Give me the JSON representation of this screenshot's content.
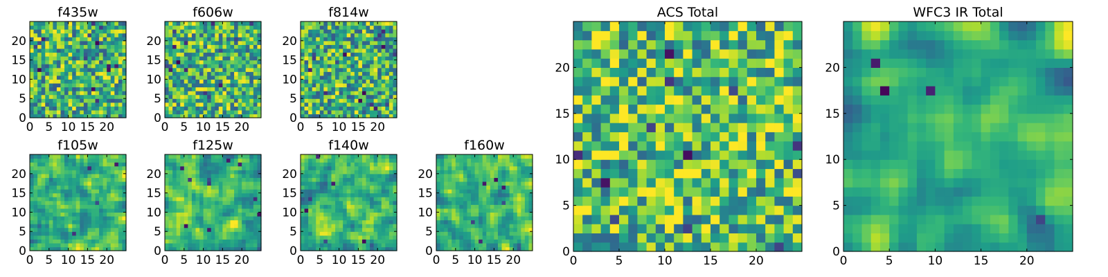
{
  "chart_data": [
    {
      "type": "heatmap",
      "title": "f435w",
      "xticks": [
        "0",
        "5",
        "10",
        "15",
        "20"
      ],
      "yticks": [
        "0",
        "5",
        "10",
        "15",
        "20"
      ],
      "xlim": [
        0,
        25
      ],
      "ylim": [
        0,
        25
      ],
      "grid_size": [
        25,
        25
      ],
      "colormap": "viridis",
      "seed": 11,
      "smooth": 0,
      "bias": 0.0,
      "gamma": 1.0,
      "dark_spots": 14
    },
    {
      "type": "heatmap",
      "title": "f606w",
      "xticks": [
        "0",
        "5",
        "10",
        "15",
        "20"
      ],
      "yticks": [
        "0",
        "5",
        "10",
        "15",
        "20"
      ],
      "xlim": [
        0,
        25
      ],
      "ylim": [
        0,
        25
      ],
      "grid_size": [
        25,
        25
      ],
      "colormap": "viridis",
      "seed": 23,
      "smooth": 0,
      "bias": 0.02,
      "gamma": 1.0,
      "dark_spots": 14
    },
    {
      "type": "heatmap",
      "title": "f814w",
      "xticks": [
        "0",
        "5",
        "10",
        "15",
        "20"
      ],
      "yticks": [
        "0",
        "5",
        "10",
        "15",
        "20"
      ],
      "xlim": [
        0,
        25
      ],
      "ylim": [
        0,
        25
      ],
      "grid_size": [
        25,
        25
      ],
      "colormap": "viridis",
      "seed": 37,
      "smooth": 0,
      "bias": 0.0,
      "gamma": 1.0,
      "dark_spots": 16
    },
    {
      "type": "heatmap",
      "title": "f105w",
      "xticks": [
        "0",
        "5",
        "10",
        "15",
        "20"
      ],
      "yticks": [
        "0",
        "5",
        "10",
        "15",
        "20"
      ],
      "xlim": [
        0,
        25
      ],
      "ylim": [
        0,
        25
      ],
      "grid_size": [
        25,
        25
      ],
      "colormap": "viridis",
      "seed": 41,
      "smooth": 1,
      "bias": 0.05,
      "gamma": 1.0,
      "dark_spots": 4
    },
    {
      "type": "heatmap",
      "title": "f125w",
      "xticks": [
        "0",
        "5",
        "10",
        "15",
        "20"
      ],
      "yticks": [
        "0",
        "5",
        "10",
        "15",
        "20"
      ],
      "xlim": [
        0,
        25
      ],
      "ylim": [
        0,
        25
      ],
      "grid_size": [
        25,
        25
      ],
      "colormap": "viridis",
      "seed": 53,
      "smooth": 1,
      "bias": 0.0,
      "gamma": 1.0,
      "dark_spots": 10
    },
    {
      "type": "heatmap",
      "title": "f140w",
      "xticks": [
        "0",
        "5",
        "10",
        "15",
        "20"
      ],
      "yticks": [
        "0",
        "5",
        "10",
        "15",
        "20"
      ],
      "xlim": [
        0,
        25
      ],
      "ylim": [
        0,
        25
      ],
      "grid_size": [
        25,
        25
      ],
      "colormap": "viridis",
      "seed": 67,
      "smooth": 1,
      "bias": 0.0,
      "gamma": 1.0,
      "dark_spots": 6
    },
    {
      "type": "heatmap",
      "title": "f160w",
      "xticks": [
        "0",
        "5",
        "10",
        "15",
        "20"
      ],
      "yticks": [
        "0",
        "5",
        "10",
        "15",
        "20"
      ],
      "xlim": [
        0,
        25
      ],
      "ylim": [
        0,
        25
      ],
      "grid_size": [
        25,
        25
      ],
      "colormap": "viridis",
      "seed": 79,
      "smooth": 1,
      "bias": 0.0,
      "gamma": 1.0,
      "dark_spots": 6
    },
    {
      "type": "heatmap",
      "title": "ACS Total",
      "xticks": [
        "0",
        "5",
        "10",
        "15",
        "20"
      ],
      "yticks": [
        "0",
        "5",
        "10",
        "15",
        "20"
      ],
      "xlim": [
        0,
        25
      ],
      "ylim": [
        0,
        25
      ],
      "grid_size": [
        25,
        25
      ],
      "colormap": "viridis",
      "seed": 97,
      "smooth": 0,
      "bias": 0.05,
      "gamma": 1.0,
      "dark_spots": 12
    },
    {
      "type": "heatmap",
      "title": "WFC3 IR Total",
      "xticks": [
        "0",
        "5",
        "10",
        "15",
        "20"
      ],
      "yticks": [
        "0",
        "5",
        "10",
        "15",
        "20"
      ],
      "xlim": [
        0,
        25
      ],
      "ylim": [
        0,
        25
      ],
      "grid_size": [
        25,
        25
      ],
      "colormap": "viridis",
      "seed": 113,
      "smooth": 2,
      "bias": 0.0,
      "gamma": 1.0,
      "dark_spots": 4
    }
  ]
}
